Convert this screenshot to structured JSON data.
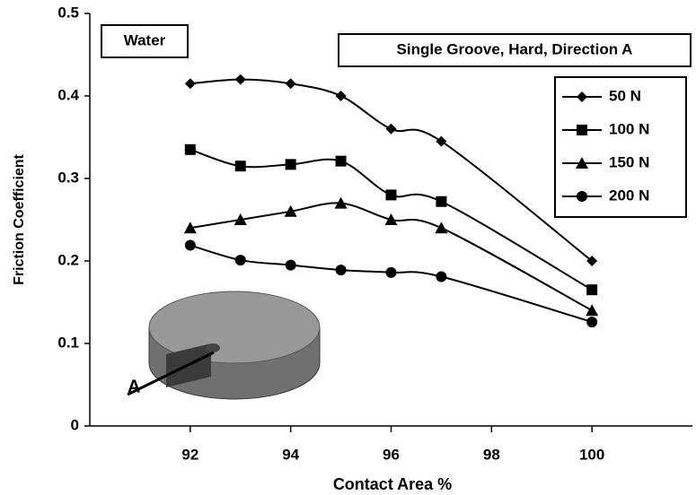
{
  "chart_data": {
    "type": "line",
    "x_label": "Contact Area %",
    "y_label": "Friction Coefficient",
    "annotations": [
      "Water",
      "Single Groove, Hard, Direction A",
      "A"
    ],
    "x": [
      92,
      93,
      94,
      95,
      96,
      97,
      100
    ],
    "series": [
      {
        "name": "50 N",
        "color": "#000000",
        "marker": "diamond",
        "values": [
          0.415,
          0.42,
          0.415,
          0.4,
          0.36,
          0.345,
          0.2
        ]
      },
      {
        "name": "100 N",
        "color": "#000000",
        "marker": "square",
        "values": [
          0.335,
          0.315,
          0.317,
          0.321,
          0.28,
          0.272,
          0.165
        ]
      },
      {
        "name": "150 N",
        "color": "#000000",
        "marker": "triangle",
        "values": [
          0.24,
          0.25,
          0.26,
          0.27,
          0.25,
          0.24,
          0.14
        ]
      },
      {
        "name": "200 N",
        "color": "#000000",
        "marker": "circle",
        "values": [
          0.219,
          0.201,
          0.195,
          0.189,
          0.186,
          0.181,
          0.126
        ]
      }
    ],
    "xlim": [
      90,
      102
    ],
    "ylim": [
      0,
      0.5
    ],
    "xticks": [
      92,
      94,
      96,
      98,
      100
    ],
    "yticks": [
      0,
      0.1,
      0.2,
      0.3,
      0.4,
      0.5
    ],
    "legend": "upper right"
  }
}
